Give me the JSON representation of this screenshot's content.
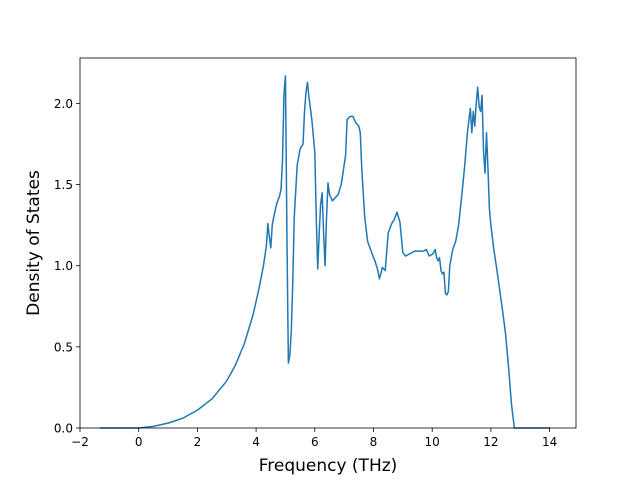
{
  "chart_data": {
    "type": "line",
    "title": "",
    "xlabel": "Frequency (THz)",
    "ylabel": "Density of States",
    "xlim": [
      -2.0,
      14.9
    ],
    "ylim": [
      0.0,
      2.28
    ],
    "xticks": [
      -2,
      0,
      2,
      4,
      6,
      8,
      10,
      12,
      14
    ],
    "xtick_labels": [
      "−2",
      "0",
      "2",
      "4",
      "6",
      "8",
      "10",
      "12",
      "14"
    ],
    "yticks": [
      0.0,
      0.5,
      1.0,
      1.5,
      2.0
    ],
    "ytick_labels": [
      "0.0",
      "0.5",
      "1.0",
      "1.5",
      "2.0"
    ],
    "grid": false,
    "legend": "none",
    "line_color": "#1f77b4",
    "series": [
      {
        "x": [
          -1.3,
          -0.5,
          0.0,
          0.5,
          1.0,
          1.5,
          2.0,
          2.5,
          3.0,
          3.3,
          3.6,
          3.9,
          4.1,
          4.25,
          4.35,
          4.4,
          4.45,
          4.5,
          4.55,
          4.6,
          4.7,
          4.8,
          4.85,
          4.9,
          4.95,
          5.0,
          5.05,
          5.1,
          5.15,
          5.2,
          5.25,
          5.3,
          5.4,
          5.5,
          5.6,
          5.65,
          5.7,
          5.75,
          5.8,
          5.9,
          6.0,
          6.05,
          6.1,
          6.15,
          6.2,
          6.25,
          6.3,
          6.35,
          6.4,
          6.45,
          6.5,
          6.6,
          6.7,
          6.8,
          6.9,
          7.0,
          7.05,
          7.1,
          7.2,
          7.3,
          7.4,
          7.5,
          7.55,
          7.6,
          7.7,
          7.8,
          7.9,
          8.0,
          8.05,
          8.1,
          8.15,
          8.2,
          8.25,
          8.3,
          8.4,
          8.5,
          8.6,
          8.65,
          8.7,
          8.8,
          8.9,
          9.0,
          9.1,
          9.2,
          9.3,
          9.4,
          9.5,
          9.6,
          9.7,
          9.8,
          9.9,
          10.0,
          10.05,
          10.1,
          10.15,
          10.2,
          10.25,
          10.3,
          10.35,
          10.4,
          10.45,
          10.5,
          10.55,
          10.6,
          10.7,
          10.8,
          10.9,
          11.0,
          11.1,
          11.2,
          11.3,
          11.35,
          11.4,
          11.45,
          11.5,
          11.55,
          11.6,
          11.65,
          11.7,
          11.75,
          11.8,
          11.85,
          11.9,
          11.95,
          12.0,
          12.1,
          12.2,
          12.3,
          12.4,
          12.5,
          12.6,
          12.7,
          12.8,
          12.85,
          13.0,
          13.5,
          14.0
        ],
        "values": [
          0.0,
          0.0,
          0.0,
          0.01,
          0.03,
          0.06,
          0.11,
          0.18,
          0.29,
          0.39,
          0.52,
          0.7,
          0.86,
          1.0,
          1.12,
          1.26,
          1.18,
          1.11,
          1.25,
          1.3,
          1.38,
          1.43,
          1.47,
          1.65,
          2.06,
          2.17,
          1.2,
          0.4,
          0.45,
          0.6,
          0.9,
          1.3,
          1.62,
          1.72,
          1.75,
          1.95,
          2.07,
          2.13,
          2.04,
          1.9,
          1.7,
          1.3,
          0.98,
          1.2,
          1.38,
          1.45,
          1.2,
          1.0,
          1.3,
          1.51,
          1.44,
          1.4,
          1.42,
          1.44,
          1.5,
          1.62,
          1.68,
          1.9,
          1.92,
          1.92,
          1.88,
          1.86,
          1.82,
          1.6,
          1.3,
          1.15,
          1.1,
          1.05,
          1.03,
          1.0,
          0.97,
          0.92,
          0.95,
          0.99,
          0.97,
          1.2,
          1.25,
          1.27,
          1.28,
          1.33,
          1.27,
          1.08,
          1.06,
          1.07,
          1.08,
          1.09,
          1.09,
          1.09,
          1.09,
          1.1,
          1.06,
          1.07,
          1.08,
          1.1,
          1.05,
          1.03,
          1.05,
          0.97,
          0.95,
          0.96,
          0.83,
          0.82,
          0.84,
          1.0,
          1.1,
          1.15,
          1.25,
          1.42,
          1.6,
          1.82,
          1.97,
          1.82,
          1.95,
          1.86,
          2.0,
          2.1,
          1.98,
          1.95,
          2.05,
          1.7,
          1.57,
          1.82,
          1.6,
          1.35,
          1.25,
          1.1,
          0.98,
          0.85,
          0.72,
          0.58,
          0.38,
          0.15,
          0.0,
          0.0,
          0.0,
          0.0,
          0.0
        ]
      }
    ]
  }
}
